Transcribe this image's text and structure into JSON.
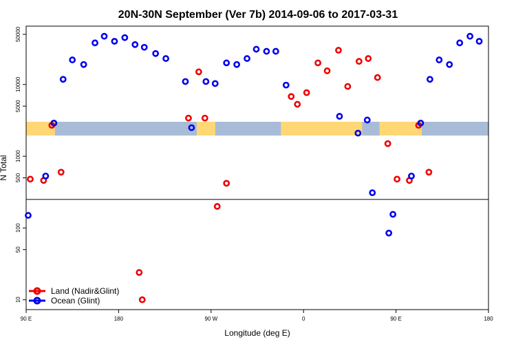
{
  "chart_data": {
    "type": "scatter",
    "title": "20N-30N September (Ver 7b)   2014-09-06 to 2017-03-31",
    "xlabel": "Longitude (deg E)",
    "ylabel": "N Total",
    "x_ticks": [
      {
        "lon": 90,
        "label": "90 E"
      },
      {
        "lon": 180,
        "label": "180"
      },
      {
        "lon": 270,
        "label": "90 W"
      },
      {
        "lon": 360,
        "label": "0"
      },
      {
        "lon": 450,
        "label": "90 E"
      },
      {
        "lon": 540,
        "label": "180"
      }
    ],
    "xlim": [
      90,
      540
    ],
    "y_scale": "log",
    "y_ticks": [
      10,
      50,
      100,
      500,
      1000,
      5000,
      10000,
      50000
    ],
    "y_tick_labels": [
      "10",
      "50",
      "100",
      "500",
      "1000",
      "5000",
      "10000",
      "50000"
    ],
    "horizontal_line": 250,
    "legend_position": "bottom-left",
    "map_colors": {
      "ocean": "#a8bcd8",
      "land": "#ffd875"
    },
    "series": [
      {
        "name": "Land (Nadir&Glint)",
        "color": "#ee0000",
        "points": [
          {
            "lon": 94,
            "n": 480
          },
          {
            "lon": 107,
            "n": 460
          },
          {
            "lon": 115,
            "n": 2700
          },
          {
            "lon": 124,
            "n": 600
          },
          {
            "lon": 200,
            "n": 24
          },
          {
            "lon": 203,
            "n": 10
          },
          {
            "lon": 248,
            "n": 3400
          },
          {
            "lon": 258,
            "n": 15000
          },
          {
            "lon": 264,
            "n": 3400
          },
          {
            "lon": 276,
            "n": 200
          },
          {
            "lon": 285,
            "n": 420
          },
          {
            "lon": 348,
            "n": 6800
          },
          {
            "lon": 354,
            "n": 5300
          },
          {
            "lon": 363,
            "n": 7700
          },
          {
            "lon": 374,
            "n": 20000
          },
          {
            "lon": 383,
            "n": 15500
          },
          {
            "lon": 394,
            "n": 30000
          },
          {
            "lon": 403,
            "n": 9400
          },
          {
            "lon": 414,
            "n": 21000
          },
          {
            "lon": 423,
            "n": 23000
          },
          {
            "lon": 432,
            "n": 12500
          },
          {
            "lon": 442,
            "n": 1500
          },
          {
            "lon": 451,
            "n": 480
          },
          {
            "lon": 463,
            "n": 460
          },
          {
            "lon": 472,
            "n": 2700
          },
          {
            "lon": 482,
            "n": 600
          }
        ]
      },
      {
        "name": "Ocean (Glint)",
        "color": "#0000ee",
        "points": [
          {
            "lon": 92,
            "n": 150
          },
          {
            "lon": 109,
            "n": 530
          },
          {
            "lon": 117,
            "n": 2900
          },
          {
            "lon": 126,
            "n": 11800
          },
          {
            "lon": 135,
            "n": 22000
          },
          {
            "lon": 146,
            "n": 19000
          },
          {
            "lon": 157,
            "n": 38000
          },
          {
            "lon": 166,
            "n": 47000
          },
          {
            "lon": 176,
            "n": 40000
          },
          {
            "lon": 186,
            "n": 45000
          },
          {
            "lon": 196,
            "n": 36000
          },
          {
            "lon": 205,
            "n": 33000
          },
          {
            "lon": 216,
            "n": 27000
          },
          {
            "lon": 226,
            "n": 23000
          },
          {
            "lon": 245,
            "n": 11000
          },
          {
            "lon": 251,
            "n": 2500
          },
          {
            "lon": 265,
            "n": 11000
          },
          {
            "lon": 274,
            "n": 10300
          },
          {
            "lon": 285,
            "n": 20000
          },
          {
            "lon": 295,
            "n": 19000
          },
          {
            "lon": 305,
            "n": 23000
          },
          {
            "lon": 314,
            "n": 31000
          },
          {
            "lon": 324,
            "n": 29000
          },
          {
            "lon": 333,
            "n": 29000
          },
          {
            "lon": 343,
            "n": 9800
          },
          {
            "lon": 395,
            "n": 3600
          },
          {
            "lon": 413,
            "n": 2100
          },
          {
            "lon": 422,
            "n": 3200
          },
          {
            "lon": 427,
            "n": 310
          },
          {
            "lon": 443,
            "n": 85
          },
          {
            "lon": 447,
            "n": 155
          },
          {
            "lon": 465,
            "n": 530
          },
          {
            "lon": 474,
            "n": 2900
          },
          {
            "lon": 483,
            "n": 11800
          },
          {
            "lon": 492,
            "n": 22000
          },
          {
            "lon": 502,
            "n": 19000
          },
          {
            "lon": 512,
            "n": 38000
          },
          {
            "lon": 522,
            "n": 47000
          },
          {
            "lon": 531,
            "n": 40000
          }
        ]
      }
    ]
  }
}
